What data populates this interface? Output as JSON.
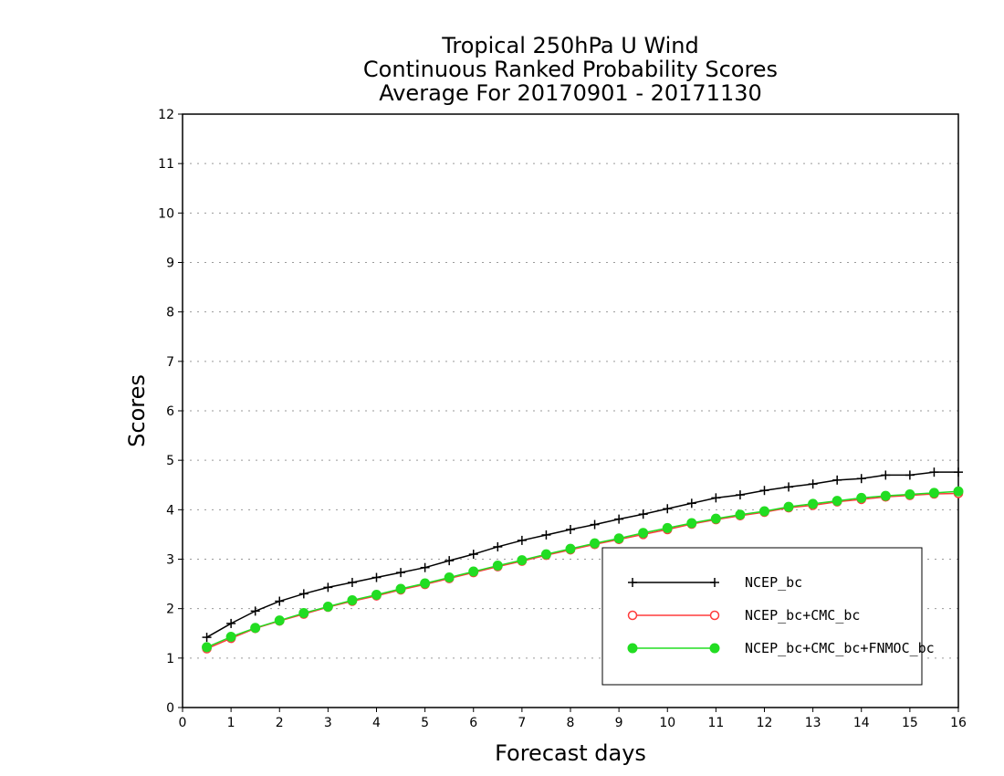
{
  "chart_data": {
    "type": "line",
    "title": [
      "Tropical 250hPa U Wind",
      "Continuous Ranked Probability Scores",
      "Average For 20170901 - 20171130"
    ],
    "xlabel": "Forecast days",
    "ylabel": "Scores",
    "xlim": [
      0,
      16
    ],
    "ylim": [
      0,
      12
    ],
    "xticks": [
      0,
      1,
      2,
      3,
      4,
      5,
      6,
      7,
      8,
      9,
      10,
      11,
      12,
      13,
      14,
      15,
      16
    ],
    "yticks": [
      0,
      1,
      2,
      3,
      4,
      5,
      6,
      7,
      8,
      9,
      10,
      11,
      12
    ],
    "grid": true,
    "legend_position": "bottom-right",
    "x": [
      0.5,
      1,
      1.5,
      2,
      2.5,
      3,
      3.5,
      4,
      4.5,
      5,
      5.5,
      6,
      6.5,
      7,
      7.5,
      8,
      8.5,
      9,
      9.5,
      10,
      10.5,
      11,
      11.5,
      12,
      12.5,
      13,
      13.5,
      14,
      14.5,
      15,
      15.5,
      16
    ],
    "series": [
      {
        "name": "NCEP_bc",
        "color": "#000000",
        "marker": "plus",
        "values": [
          1.42,
          1.7,
          1.95,
          2.15,
          2.3,
          2.43,
          2.53,
          2.63,
          2.73,
          2.83,
          2.97,
          3.1,
          3.25,
          3.38,
          3.49,
          3.6,
          3.7,
          3.81,
          3.91,
          4.02,
          4.13,
          4.24,
          4.3,
          4.39,
          4.46,
          4.52,
          4.6,
          4.63,
          4.7,
          4.7,
          4.76,
          4.76
        ]
      },
      {
        "name": "NCEP_bc+CMC_bc",
        "color": "#ff3b3b",
        "marker": "open-circle",
        "values": [
          1.19,
          1.4,
          1.6,
          1.75,
          1.89,
          2.03,
          2.15,
          2.26,
          2.38,
          2.49,
          2.61,
          2.73,
          2.85,
          2.96,
          3.08,
          3.19,
          3.3,
          3.4,
          3.5,
          3.6,
          3.71,
          3.8,
          3.88,
          3.95,
          4.04,
          4.09,
          4.16,
          4.21,
          4.26,
          4.29,
          4.32,
          4.33
        ]
      },
      {
        "name": "NCEP_bc+CMC_bc+FNMOC_bc",
        "color": "#22dd22",
        "marker": "filled-circle",
        "values": [
          1.22,
          1.43,
          1.61,
          1.76,
          1.91,
          2.04,
          2.17,
          2.28,
          2.4,
          2.51,
          2.63,
          2.75,
          2.87,
          2.98,
          3.1,
          3.21,
          3.32,
          3.42,
          3.53,
          3.63,
          3.73,
          3.82,
          3.9,
          3.97,
          4.06,
          4.12,
          4.18,
          4.24,
          4.28,
          4.31,
          4.34,
          4.37
        ]
      }
    ]
  }
}
